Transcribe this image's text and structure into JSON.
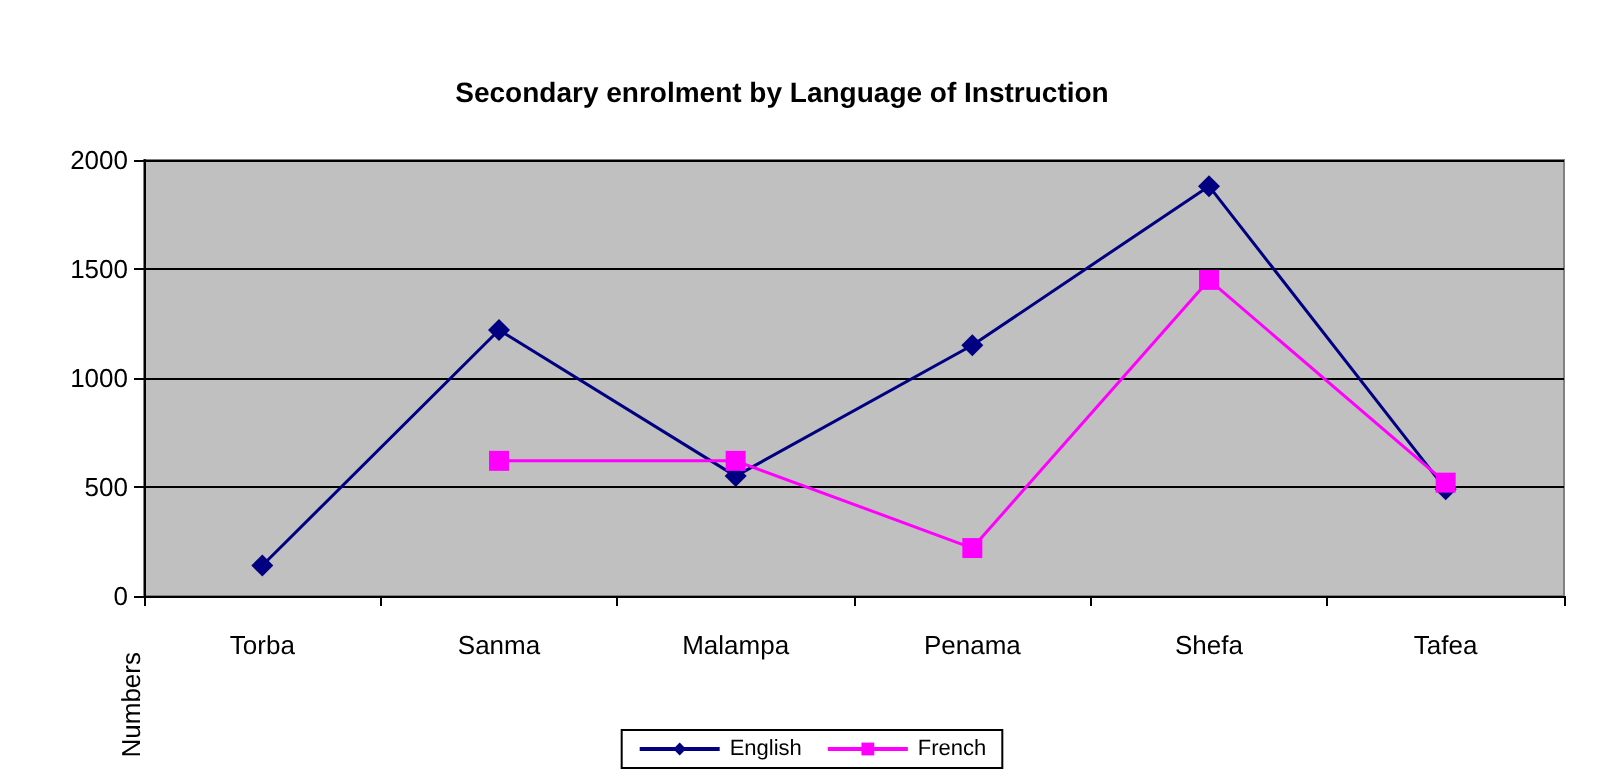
{
  "chart_data": {
    "type": "line",
    "title": "Secondary enrolment by Language of Instruction",
    "ylabel": "Numbers",
    "categories": [
      "Torba",
      "Sanma",
      "Malampa",
      "Penama",
      "Shefa",
      "Tafea"
    ],
    "series": [
      {
        "name": "English",
        "color": "#000080",
        "marker": "diamond",
        "values": [
          140,
          1220,
          550,
          1150,
          1880,
          490
        ]
      },
      {
        "name": "French",
        "color": "#ff00ff",
        "marker": "square",
        "values": [
          null,
          620,
          620,
          220,
          1450,
          520
        ]
      }
    ],
    "ylim": [
      0,
      2000
    ],
    "yticks": [
      0,
      500,
      1000,
      1500,
      2000
    ],
    "grid": "y",
    "legend": "bottom"
  }
}
